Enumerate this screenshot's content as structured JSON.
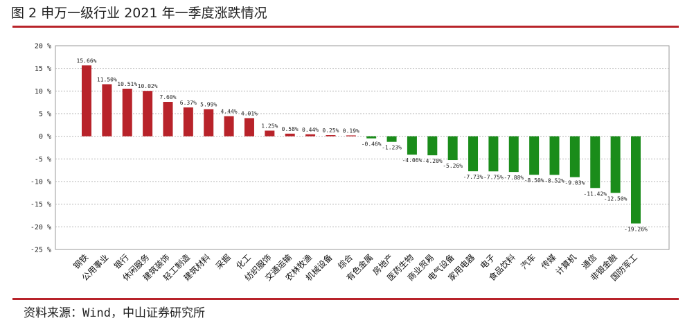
{
  "figure": {
    "title": "图 2   申万一级行业 2021 年一季度涨跌情况",
    "source": "资料来源：Wind，中山证券研究所"
  },
  "colors": {
    "positive": "#b8232a",
    "negative": "#1a8c1a",
    "rule": "#b8232a"
  },
  "chart_data": {
    "type": "bar",
    "title": "",
    "xlabel": "",
    "ylabel": "",
    "ylim": [
      -25,
      20
    ],
    "yticks": [
      20,
      15,
      10,
      5,
      0,
      -5,
      -10,
      -15,
      -20,
      -25
    ],
    "ytick_labels": [
      "20 %",
      "15 %",
      "10 %",
      "5 %",
      "0 %",
      "-5 %",
      "-10 %",
      "-15 %",
      "-20 %",
      "-25 %"
    ],
    "grid": true,
    "legend": "none",
    "categories": [
      "钢铁",
      "公用事业",
      "银行",
      "休闲服务",
      "建筑装饰",
      "轻工制造",
      "建筑材料",
      "采掘",
      "化工",
      "纺织服饰",
      "交通运输",
      "农林牧渔",
      "机械设备",
      "综合",
      "有色金属",
      "房地产",
      "医药生物",
      "商业贸易",
      "电气设备",
      "家用电器",
      "电子",
      "食品饮料",
      "汽车",
      "传媒",
      "计算机",
      "通信",
      "非银金融",
      "国防军工"
    ],
    "values": [
      15.66,
      11.5,
      10.51,
      10.02,
      7.6,
      6.37,
      5.99,
      4.44,
      4.01,
      1.25,
      0.58,
      0.44,
      0.25,
      0.19,
      -0.46,
      -1.23,
      -4.06,
      -4.2,
      -5.26,
      -7.73,
      -7.75,
      -7.88,
      -8.5,
      -8.52,
      -9.03,
      -11.42,
      -12.5,
      -19.26
    ],
    "data_labels": [
      "15.66%",
      "11.50%",
      "10.51%",
      "10.02%",
      "7.60%",
      "6.37%",
      "5.99%",
      "4.44%",
      "4.01%",
      "1.25%",
      "0.58%",
      "0.44%",
      "0.25%",
      "0.19%",
      "-0.46%",
      "-1.23%",
      "-4.06%",
      "-4.20%",
      "-5.26%",
      "-7.73%",
      "-7.75%",
      "-7.88%",
      "-8.50%",
      "-8.52%",
      "-9.03%",
      "-11.42%",
      "-12.50%",
      "-19.26%"
    ]
  }
}
